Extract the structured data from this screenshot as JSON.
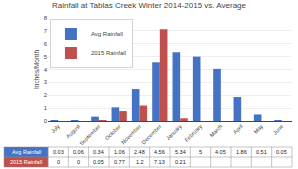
{
  "chart_data": {
    "type": "bar",
    "title": "Rainfall at Tablas Creek Winter 2014-2015 vs. Average",
    "ylabel": "Inches/Month",
    "categories": [
      "July",
      "August",
      "September",
      "October",
      "November",
      "December",
      "January",
      "February",
      "March",
      "April",
      "May",
      "June"
    ],
    "series": [
      {
        "name": "Avg Rainfall",
        "color": "#4472C4",
        "values": [
          0.03,
          0.06,
          0.34,
          1.06,
          2.48,
          4.56,
          5.34,
          5,
          4.05,
          1.86,
          0.51,
          0.05
        ]
      },
      {
        "name": "2015 Rainfall",
        "color": "#C0504D",
        "values": [
          0,
          0,
          0.05,
          0.77,
          1.2,
          7.13,
          0.21,
          null,
          null,
          null,
          null,
          null
        ]
      }
    ],
    "ylim": [
      0,
      8
    ],
    "yticks": [
      0,
      1,
      2,
      3,
      4,
      5,
      6,
      7,
      8
    ],
    "grid": true,
    "legend": "upper left"
  }
}
